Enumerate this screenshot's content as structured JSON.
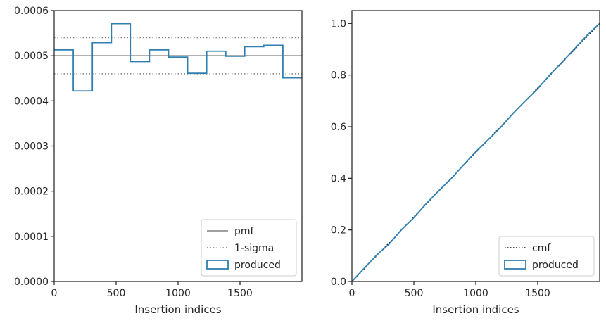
{
  "chart_data": [
    {
      "type": "step",
      "xlabel": "Insertion indices",
      "ylabel": "",
      "xlim": [
        0,
        2000
      ],
      "ylim": [
        0,
        0.0006
      ],
      "xticks": [
        0,
        500,
        1000,
        1500
      ],
      "yticks": [
        0.0,
        0.0001,
        0.0002,
        0.0003,
        0.0004,
        0.0005,
        0.0006
      ],
      "ytick_labels": [
        "0.0000",
        "0.0001",
        "0.0002",
        "0.0003",
        "0.0004",
        "0.0005",
        "0.0006"
      ],
      "grid": false,
      "legend": {
        "position": "bottom-right",
        "entries": [
          "pmf",
          "1-sigma",
          "produced"
        ]
      },
      "reference_lines": [
        {
          "name": "pmf",
          "y": 0.0005,
          "style": "solid",
          "color": "#808080"
        },
        {
          "name": "1-sigma",
          "y": 0.00054,
          "style": "dotted",
          "color": "#808080"
        },
        {
          "name": "1-sigma",
          "y": 0.00046,
          "style": "dotted",
          "color": "#808080"
        }
      ],
      "series": [
        {
          "name": "produced",
          "color": "#2f7fb0",
          "bin_edges": [
            0,
            154,
            308,
            462,
            615,
            769,
            923,
            1077,
            1231,
            1385,
            1538,
            1692,
            1846,
            2000
          ],
          "values": [
            0.000513,
            0.000422,
            0.000529,
            0.000571,
            0.000487,
            0.000513,
            0.000497,
            0.000461,
            0.00051,
            0.000499,
            0.00052,
            0.000523,
            0.000451
          ]
        }
      ]
    },
    {
      "type": "line",
      "xlabel": "Insertion indices",
      "ylabel": "",
      "xlim": [
        0,
        2000
      ],
      "ylim": [
        0,
        1.05
      ],
      "xticks": [
        0,
        500,
        1000,
        1500
      ],
      "yticks": [
        0.0,
        0.2,
        0.4,
        0.6,
        0.8,
        1.0
      ],
      "ytick_labels": [
        "0.0",
        "0.2",
        "0.4",
        "0.6",
        "0.8",
        "1.0"
      ],
      "grid": false,
      "legend": {
        "position": "bottom-right",
        "entries": [
          "cmf",
          "produced"
        ]
      },
      "series": [
        {
          "name": "cmf",
          "style": "dotted",
          "color": "#111111",
          "x": [
            0,
            2000
          ],
          "y": [
            0,
            1
          ]
        },
        {
          "name": "produced",
          "style": "solid",
          "color": "#2f7fb0",
          "x": [
            0,
            100,
            200,
            300,
            400,
            500,
            600,
            700,
            800,
            900,
            1000,
            1100,
            1200,
            1300,
            1400,
            1500,
            1600,
            1700,
            1800,
            1900,
            2000
          ],
          "y": [
            0,
            0.052,
            0.103,
            0.145,
            0.201,
            0.247,
            0.302,
            0.351,
            0.398,
            0.451,
            0.503,
            0.549,
            0.597,
            0.651,
            0.7,
            0.747,
            0.802,
            0.852,
            0.903,
            0.955,
            1.0
          ]
        }
      ]
    }
  ]
}
